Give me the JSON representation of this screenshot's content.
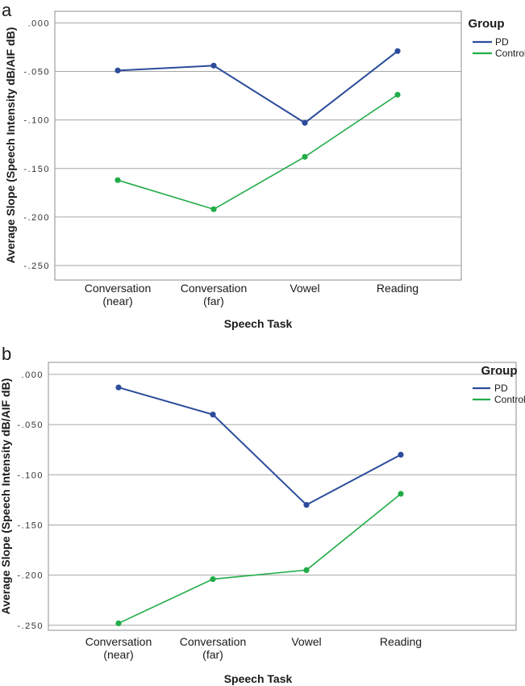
{
  "chart_data": [
    {
      "type": "line",
      "panel_label": "a",
      "categories": [
        "Conversation\n(near)",
        "Conversation\n(far)",
        "Vowel",
        "Reading"
      ],
      "series": [
        {
          "name": "PD",
          "values": [
            -0.049,
            -0.044,
            -0.103,
            -0.029
          ],
          "color": "#2b4c9b"
        },
        {
          "name": "Control",
          "values": [
            -0.162,
            -0.192,
            -0.138,
            -0.074
          ],
          "color": "#22ac48"
        }
      ],
      "xlabel": "Speech Task",
      "ylabel": "Average Slope (Speech Intensity dB/AIF dB)",
      "ylim": [
        -0.265,
        0.012
      ],
      "yticks": [
        0,
        -0.05,
        -0.1,
        -0.15,
        -0.2,
        -0.25
      ],
      "ytick_labels": [
        ".000",
        "-.050",
        "-.100",
        "-.150",
        "-.200",
        "-.250"
      ],
      "legend_title": "Group",
      "legend_position": "top-right",
      "grid": true
    },
    {
      "type": "line",
      "panel_label": "b",
      "categories": [
        "Conversation\n(near)",
        "Conversation\n(far)",
        "Vowel",
        "Reading"
      ],
      "series": [
        {
          "name": "PD",
          "values": [
            -0.013,
            -0.04,
            -0.13,
            -0.08
          ],
          "color": "#2b4c9b"
        },
        {
          "name": "Control",
          "values": [
            -0.248,
            -0.204,
            -0.195,
            -0.119
          ],
          "color": "#22ac48"
        }
      ],
      "xlabel": "Speech Task",
      "ylabel": "Average Slope (Speech Intensity dB/AIF dB)",
      "ylim": [
        -0.255,
        0.012
      ],
      "yticks": [
        0,
        -0.05,
        -0.1,
        -0.15,
        -0.2,
        -0.25
      ],
      "ytick_labels": [
        ".000",
        "-.050",
        "-.100",
        "-.150",
        "-.200",
        "-.250"
      ],
      "legend_title": "Group",
      "legend_position": "top-right",
      "grid": true
    }
  ]
}
